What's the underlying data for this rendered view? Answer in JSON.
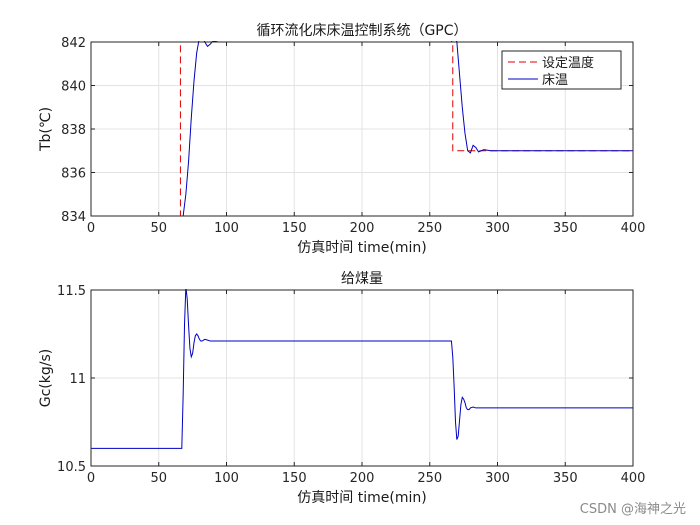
{
  "watermark": "CSDN @海神之光",
  "chart_data": [
    {
      "type": "line",
      "title": "循环流化床床温控制系统（GPC）",
      "xlabel": "仿真时间 time(min)",
      "ylabel": "Tb(℃)",
      "xlim": [
        0,
        400
      ],
      "ylim": [
        834,
        842
      ],
      "xticks": [
        0,
        50,
        100,
        150,
        200,
        250,
        300,
        350,
        400
      ],
      "yticks": [
        834,
        836,
        838,
        840,
        842
      ],
      "grid": true,
      "legend": "top-right",
      "series": [
        {
          "name": "设定温度",
          "color": "#e00000",
          "dash": true,
          "x": [
            0,
            66,
            66,
            267,
            267,
            400
          ],
          "y": [
            834,
            834,
            842,
            842,
            837,
            837
          ]
        },
        {
          "name": "床温",
          "color": "#0000c0",
          "dash": false,
          "x": [
            0,
            68,
            70,
            72,
            74,
            76,
            78,
            80,
            82,
            84,
            86,
            88,
            90,
            94,
            100,
            150,
            200,
            266,
            268,
            270,
            272,
            274,
            276,
            278,
            280,
            282,
            284,
            286,
            288,
            290,
            295,
            300,
            350,
            400
          ],
          "y": [
            834,
            834,
            835,
            836.5,
            838.5,
            840.2,
            841.5,
            842.2,
            842.3,
            842.0,
            841.8,
            841.9,
            842.05,
            842.0,
            842.0,
            842.0,
            842.0,
            842.0,
            842.3,
            842.0,
            840.5,
            839.0,
            837.8,
            837.0,
            836.9,
            837.25,
            837.15,
            836.95,
            837.0,
            837.05,
            837.0,
            837.0,
            837.0,
            837.0
          ]
        }
      ]
    },
    {
      "type": "line",
      "title": "给煤量",
      "xlabel": "仿真时间 time(min)",
      "ylabel": "Gc(kg/s)",
      "xlim": [
        0,
        400
      ],
      "ylim": [
        10.5,
        11.5
      ],
      "xticks": [
        0,
        50,
        100,
        150,
        200,
        250,
        300,
        350,
        400
      ],
      "yticks": [
        10.5,
        11,
        11.5
      ],
      "grid": true,
      "series": [
        {
          "color": "#0000c0",
          "x": [
            0,
            67,
            68,
            69,
            70,
            71,
            72,
            73,
            74,
            75,
            76,
            77,
            78,
            79,
            80,
            81,
            82,
            84,
            86,
            88,
            90,
            95,
            100,
            150,
            200,
            266,
            267,
            268,
            269,
            270,
            271,
            272,
            273,
            274,
            275,
            276,
            277,
            278,
            279,
            280,
            282,
            284,
            286,
            288,
            290,
            295,
            300,
            350,
            400
          ],
          "y": [
            10.6,
            10.6,
            10.9,
            11.3,
            11.52,
            11.45,
            11.3,
            11.17,
            11.12,
            11.14,
            11.2,
            11.24,
            11.25,
            11.24,
            11.22,
            11.21,
            11.21,
            11.22,
            11.215,
            11.21,
            11.21,
            11.21,
            11.21,
            11.21,
            11.21,
            11.21,
            11.12,
            10.95,
            10.75,
            10.65,
            10.67,
            10.76,
            10.85,
            10.89,
            10.88,
            10.86,
            10.83,
            10.82,
            10.82,
            10.83,
            10.835,
            10.83,
            10.83,
            10.83,
            10.83,
            10.83,
            10.83,
            10.83,
            10.83
          ]
        }
      ]
    }
  ]
}
